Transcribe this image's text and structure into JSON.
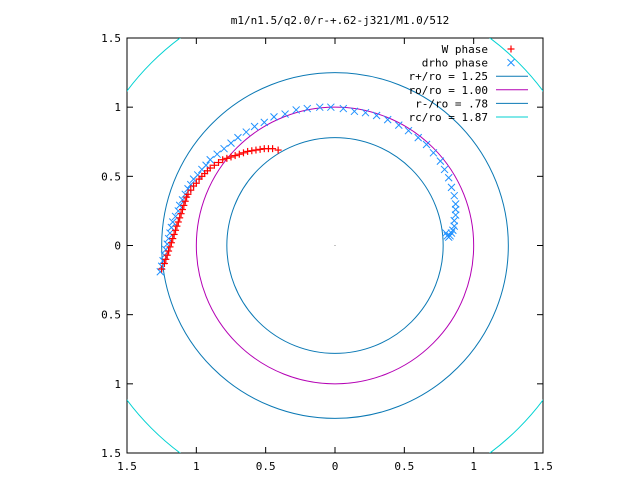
{
  "chart_data": {
    "type": "scatter",
    "title": "m1/n1.5/q2.0/r-+.62-j321/M1.0/512",
    "xlabel": "",
    "ylabel": "",
    "xlim": [
      1.5,
      -1.5
    ],
    "ylim": [
      -1.5,
      1.5
    ],
    "x_tick_values": [
      1.5,
      1,
      0.5,
      0,
      -0.5,
      -1,
      -1.5
    ],
    "x_tick_labels": [
      "1.5",
      "1",
      "0.5",
      "0",
      "0.5",
      "1",
      "1.5"
    ],
    "y_tick_values": [
      1.5,
      1,
      0.5,
      0,
      -0.5,
      -1,
      -1.5
    ],
    "y_tick_labels": [
      "1.5",
      "1",
      "0.5",
      "0",
      "0.5",
      "1",
      "1.5"
    ],
    "grid": false,
    "legend_position": "top-right",
    "series": [
      {
        "name": "W phase",
        "marker": "+",
        "color": "#ff0000",
        "points": [
          [
            1.25,
            -0.17
          ],
          [
            1.23,
            -0.13
          ],
          [
            1.22,
            -0.1
          ],
          [
            1.21,
            -0.07
          ],
          [
            1.2,
            -0.04
          ],
          [
            1.19,
            -0.01
          ],
          [
            1.18,
            0.02
          ],
          [
            1.17,
            0.05
          ],
          [
            1.16,
            0.08
          ],
          [
            1.15,
            0.11
          ],
          [
            1.14,
            0.14
          ],
          [
            1.13,
            0.17
          ],
          [
            1.12,
            0.2
          ],
          [
            1.11,
            0.23
          ],
          [
            1.1,
            0.26
          ],
          [
            1.09,
            0.29
          ],
          [
            1.08,
            0.32
          ],
          [
            1.07,
            0.35
          ],
          [
            1.06,
            0.37
          ],
          [
            1.04,
            0.4
          ],
          [
            1.02,
            0.43
          ],
          [
            1.0,
            0.45
          ],
          [
            0.98,
            0.48
          ],
          [
            0.96,
            0.5
          ],
          [
            0.94,
            0.52
          ],
          [
            0.92,
            0.54
          ],
          [
            0.9,
            0.56
          ],
          [
            0.87,
            0.58
          ],
          [
            0.84,
            0.6
          ],
          [
            0.81,
            0.62
          ],
          [
            0.78,
            0.63
          ],
          [
            0.75,
            0.64
          ],
          [
            0.72,
            0.65
          ],
          [
            0.69,
            0.66
          ],
          [
            0.66,
            0.67
          ],
          [
            0.63,
            0.68
          ],
          [
            0.6,
            0.685
          ],
          [
            0.57,
            0.69
          ],
          [
            0.54,
            0.695
          ],
          [
            0.51,
            0.7
          ],
          [
            0.48,
            0.7
          ],
          [
            0.45,
            0.7
          ],
          [
            0.41,
            0.69
          ]
        ]
      },
      {
        "name": "drho phase",
        "marker": "x",
        "color": "#1e90ff",
        "points": [
          [
            1.26,
            -0.19
          ],
          [
            1.25,
            -0.15
          ],
          [
            1.24,
            -0.11
          ],
          [
            1.23,
            -0.07
          ],
          [
            1.22,
            -0.03
          ],
          [
            1.21,
            0.01
          ],
          [
            1.2,
            0.05
          ],
          [
            1.19,
            0.09
          ],
          [
            1.18,
            0.13
          ],
          [
            1.17,
            0.17
          ],
          [
            1.15,
            0.21
          ],
          [
            1.13,
            0.25
          ],
          [
            1.12,
            0.29
          ],
          [
            1.1,
            0.33
          ],
          [
            1.08,
            0.37
          ],
          [
            1.06,
            0.41
          ],
          [
            1.04,
            0.44
          ],
          [
            1.02,
            0.48
          ],
          [
            0.99,
            0.51
          ],
          [
            0.96,
            0.55
          ],
          [
            0.93,
            0.58
          ],
          [
            0.9,
            0.62
          ],
          [
            0.85,
            0.66
          ],
          [
            0.8,
            0.7
          ],
          [
            0.75,
            0.74
          ],
          [
            0.7,
            0.78
          ],
          [
            0.64,
            0.82
          ],
          [
            0.58,
            0.86
          ],
          [
            0.51,
            0.89
          ],
          [
            0.44,
            0.93
          ],
          [
            0.36,
            0.95
          ],
          [
            0.28,
            0.98
          ],
          [
            0.2,
            0.99
          ],
          [
            0.11,
            1.0
          ],
          [
            0.03,
            1.0
          ],
          [
            -0.06,
            0.99
          ],
          [
            -0.14,
            0.97
          ],
          [
            -0.22,
            0.96
          ],
          [
            -0.3,
            0.94
          ],
          [
            -0.38,
            0.91
          ],
          [
            -0.46,
            0.87
          ],
          [
            -0.53,
            0.83
          ],
          [
            -0.6,
            0.78
          ],
          [
            -0.66,
            0.73
          ],
          [
            -0.71,
            0.67
          ],
          [
            -0.76,
            0.61
          ],
          [
            -0.79,
            0.55
          ],
          [
            -0.82,
            0.49
          ],
          [
            -0.84,
            0.42
          ],
          [
            -0.86,
            0.36
          ],
          [
            -0.87,
            0.3
          ],
          [
            -0.87,
            0.26
          ],
          [
            -0.87,
            0.22
          ],
          [
            -0.86,
            0.18
          ],
          [
            -0.86,
            0.14
          ],
          [
            -0.85,
            0.11
          ],
          [
            -0.84,
            0.09
          ],
          [
            -0.83,
            0.07
          ],
          [
            -0.82,
            0.06
          ],
          [
            -0.81,
            0.07
          ],
          [
            -0.8,
            0.09
          ]
        ]
      },
      {
        "name": "r+/ro = 1.25",
        "type": "circle",
        "radius": 1.25,
        "color": "#0a78b4"
      },
      {
        "name": "ro/ro = 1.00",
        "type": "circle",
        "radius": 1.0,
        "color": "#b400b4"
      },
      {
        "name": "r-/ro = .78",
        "type": "circle",
        "radius": 0.78,
        "color": "#0a78b4"
      },
      {
        "name": "rc/ro = 1.87",
        "type": "circle",
        "radius": 1.87,
        "color": "#00d2d2"
      }
    ]
  }
}
